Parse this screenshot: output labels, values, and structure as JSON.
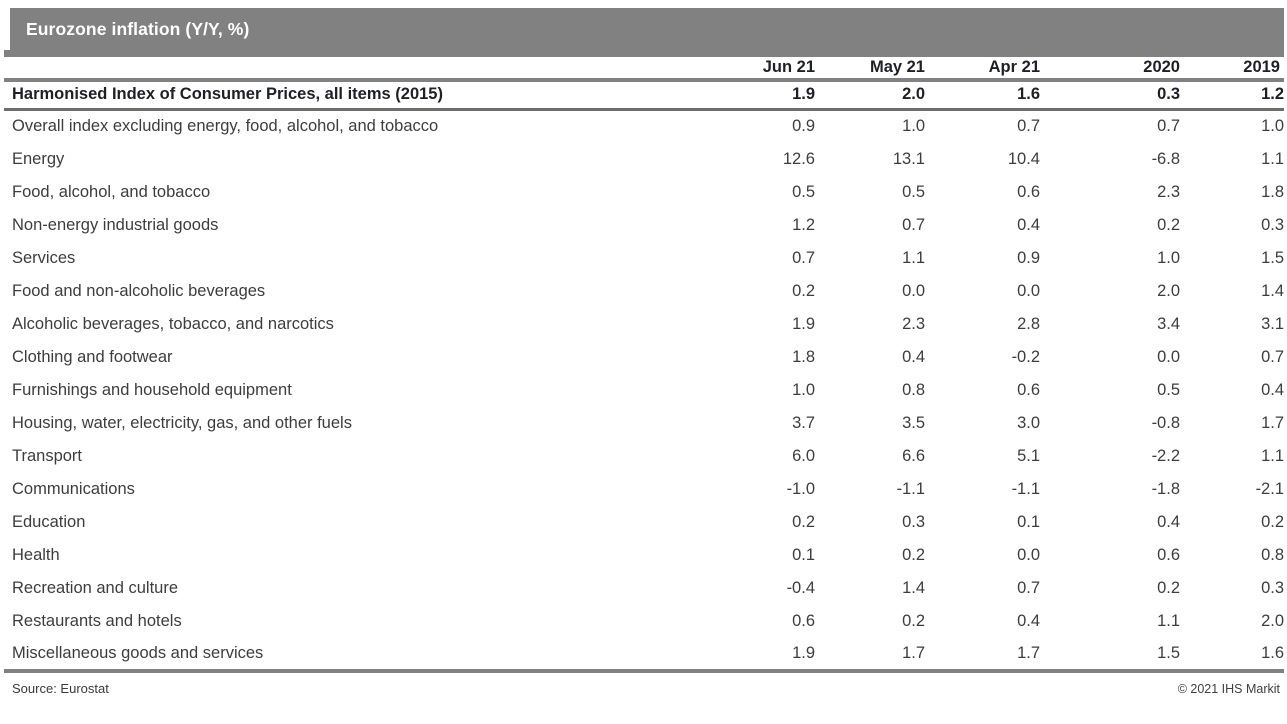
{
  "title": "Eurozone inflation (Y/Y, %)",
  "chart_data": {
    "type": "table",
    "title": "Eurozone inflation (Y/Y, %)",
    "columns": [
      "Jun 21",
      "May 21",
      "Apr 21",
      "2020",
      "2019"
    ],
    "header_row": {
      "label": "Harmonised Index of Consumer Prices, all items (2015)",
      "values": [
        "1.9",
        "2.0",
        "1.6",
        "0.3",
        "1.2"
      ]
    },
    "rows": [
      {
        "label": "Overall index excluding energy, food, alcohol, and tobacco",
        "values": [
          "0.9",
          "1.0",
          "0.7",
          "0.7",
          "1.0"
        ]
      },
      {
        "label": "Energy",
        "values": [
          "12.6",
          "13.1",
          "10.4",
          "-6.8",
          "1.1"
        ]
      },
      {
        "label": "Food, alcohol, and tobacco",
        "values": [
          "0.5",
          "0.5",
          "0.6",
          "2.3",
          "1.8"
        ]
      },
      {
        "label": "Non-energy industrial goods",
        "values": [
          "1.2",
          "0.7",
          "0.4",
          "0.2",
          "0.3"
        ]
      },
      {
        "label": "Services",
        "values": [
          "0.7",
          "1.1",
          "0.9",
          "1.0",
          "1.5"
        ]
      },
      {
        "label": "Food and non-alcoholic beverages",
        "values": [
          "0.2",
          "0.0",
          "0.0",
          "2.0",
          "1.4"
        ]
      },
      {
        "label": "Alcoholic beverages, tobacco, and narcotics",
        "values": [
          "1.9",
          "2.3",
          "2.8",
          "3.4",
          "3.1"
        ]
      },
      {
        "label": "Clothing and footwear",
        "values": [
          "1.8",
          "0.4",
          "-0.2",
          "0.0",
          "0.7"
        ]
      },
      {
        "label": "Furnishings and household equipment",
        "values": [
          "1.0",
          "0.8",
          "0.6",
          "0.5",
          "0.4"
        ]
      },
      {
        "label": "Housing, water, electricity, gas, and other fuels",
        "values": [
          "3.7",
          "3.5",
          "3.0",
          "-0.8",
          "1.7"
        ]
      },
      {
        "label": "Transport",
        "values": [
          "6.0",
          "6.6",
          "5.1",
          "-2.2",
          "1.1"
        ]
      },
      {
        "label": "Communications",
        "values": [
          "-1.0",
          "-1.1",
          "-1.1",
          "-1.8",
          "-2.1"
        ]
      },
      {
        "label": "Education",
        "values": [
          "0.2",
          "0.3",
          "0.1",
          "0.4",
          "0.2"
        ]
      },
      {
        "label": "Health",
        "values": [
          "0.1",
          "0.2",
          "0.0",
          "0.6",
          "0.8"
        ]
      },
      {
        "label": "Recreation and culture",
        "values": [
          "-0.4",
          "1.4",
          "0.7",
          "0.2",
          "0.3"
        ]
      },
      {
        "label": "Restaurants and hotels",
        "values": [
          "0.6",
          "0.2",
          "0.4",
          "1.1",
          "2.0"
        ]
      },
      {
        "label": "Miscellaneous goods and services",
        "values": [
          "1.9",
          "1.7",
          "1.7",
          "1.5",
          "1.6"
        ]
      }
    ]
  },
  "footer": {
    "source": "Source: Eurostat",
    "copyright": "© 2021 IHS Markit"
  },
  "colors": {
    "bar_gray": "#818181",
    "rule_dark": "#6d6d6d",
    "header_text": "#1f1f29",
    "body_text": "#3d3d3d",
    "title_text": "#ffffff"
  }
}
